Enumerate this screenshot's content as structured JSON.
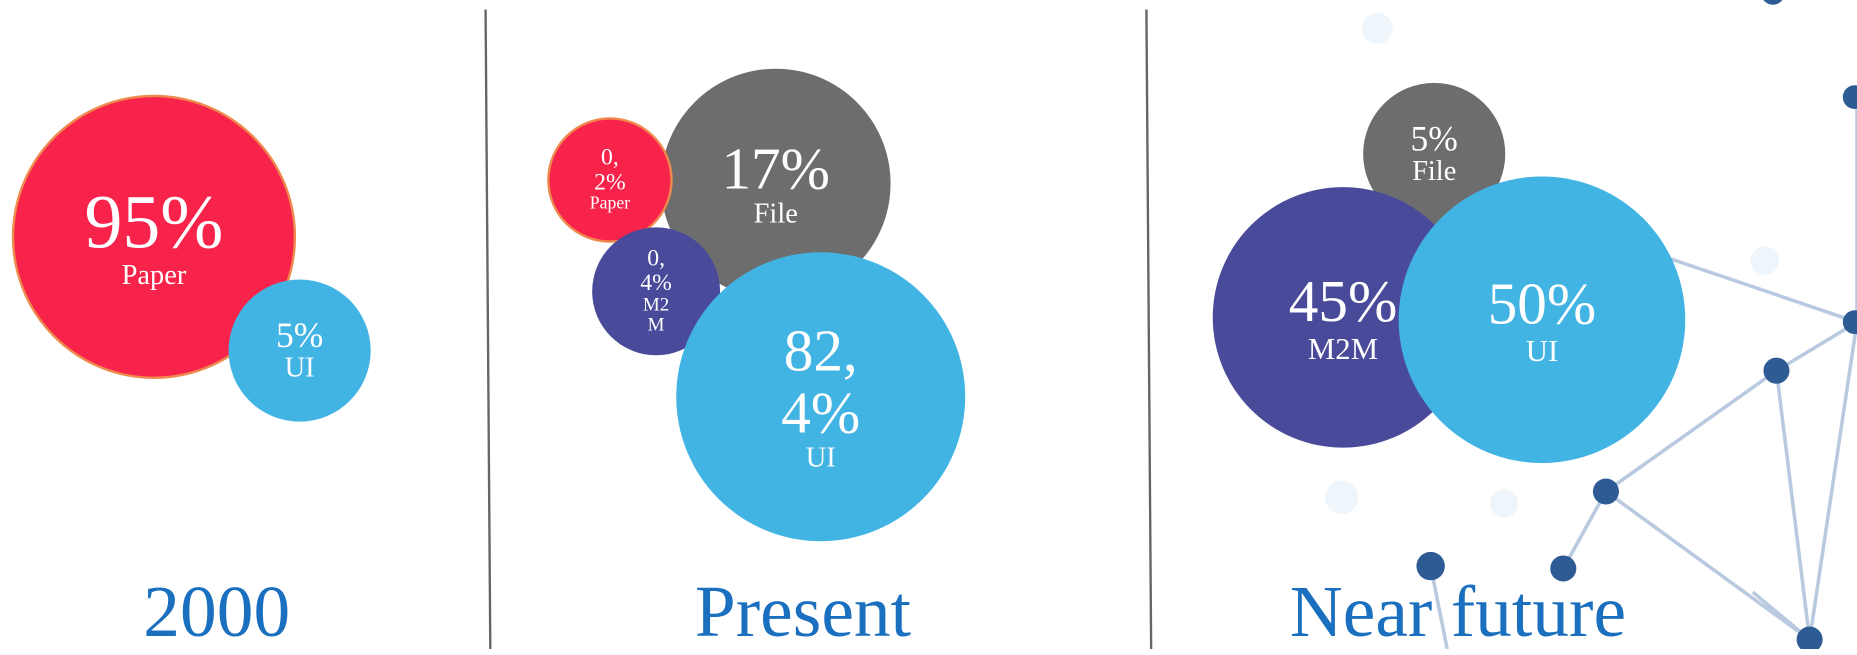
{
  "panels": [
    {
      "title": "2000",
      "bubbles": [
        {
          "value": "95%",
          "label": "Paper"
        },
        {
          "value": "5%",
          "label": "UI"
        }
      ]
    },
    {
      "title": "Present",
      "bubbles": [
        {
          "value": "17%",
          "label": "File"
        },
        {
          "value": "0,2%",
          "label": "Paper"
        },
        {
          "value": "0,4%",
          "label": "M2M"
        },
        {
          "value": "82,4%",
          "label": "UI"
        }
      ]
    },
    {
      "title": "Near future",
      "bubbles": [
        {
          "value": "5%",
          "label": "File"
        },
        {
          "value": "45%",
          "label": "M2M"
        },
        {
          "value": "50%",
          "label": "UI"
        }
      ]
    }
  ]
}
